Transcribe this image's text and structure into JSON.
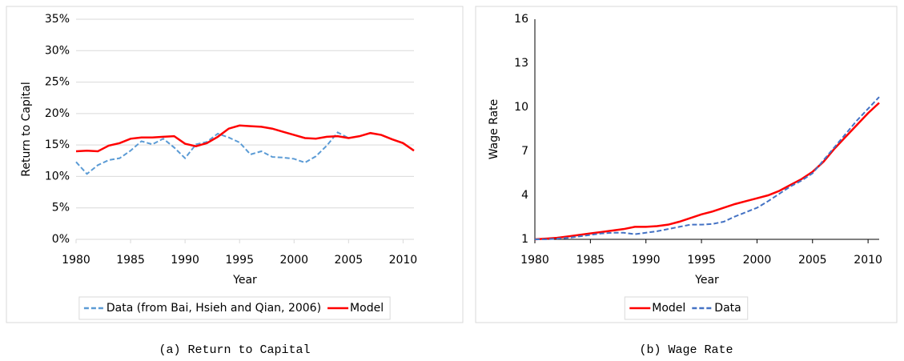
{
  "chart_data": [
    {
      "type": "line",
      "caption": "(a) Return to Capital",
      "x_label": "Year",
      "y_label": "Return to Capital",
      "x": [
        1980,
        1981,
        1982,
        1983,
        1984,
        1985,
        1986,
        1987,
        1988,
        1989,
        1990,
        1991,
        1992,
        1993,
        1994,
        1995,
        1996,
        1997,
        1998,
        1999,
        2000,
        2001,
        2002,
        2003,
        2004,
        2005,
        2006,
        2007,
        2008,
        2009,
        2010,
        2011
      ],
      "series": [
        {
          "name": "Data (from Bai, Hsieh and Qian, 2006)",
          "color": "#5b9bd5",
          "style": "dashed",
          "values": [
            12.3,
            10.4,
            11.8,
            12.6,
            12.9,
            14.1,
            15.6,
            15.1,
            16.0,
            14.6,
            12.9,
            15.1,
            15.5,
            16.8,
            16.2,
            15.4,
            13.5,
            14.0,
            13.1,
            13.0,
            12.8,
            12.2,
            13.2,
            14.9,
            17.0,
            16.1,
            null,
            null,
            null,
            null,
            null,
            null
          ]
        },
        {
          "name": "Model",
          "color": "#ff0000",
          "style": "solid",
          "values": [
            14.0,
            14.1,
            14.0,
            14.9,
            15.3,
            16.0,
            16.2,
            16.2,
            16.3,
            16.4,
            15.2,
            14.8,
            15.3,
            16.3,
            17.6,
            18.1,
            18.0,
            17.9,
            17.6,
            17.1,
            16.6,
            16.1,
            16.0,
            16.3,
            16.4,
            16.1,
            16.4,
            16.9,
            16.6,
            15.9,
            15.3,
            14.1
          ]
        }
      ],
      "xlim": [
        1980,
        2011
      ],
      "xticks": [
        1980,
        1985,
        1990,
        1995,
        2000,
        2005,
        2010
      ],
      "ylim": [
        0,
        35
      ],
      "yticks": [
        {
          "value": 0,
          "label": "0%"
        },
        {
          "value": 5,
          "label": "5%"
        },
        {
          "value": 10,
          "label": "10%"
        },
        {
          "value": 15,
          "label": "15%"
        },
        {
          "value": 20,
          "label": "20%"
        },
        {
          "value": 25,
          "label": "25%"
        },
        {
          "value": 30,
          "label": "30%"
        },
        {
          "value": 35,
          "label": "35%"
        }
      ],
      "grid": true
    },
    {
      "type": "line",
      "caption": "(b) Wage Rate",
      "x_label": "Year",
      "y_label": "Wage Rate",
      "x": [
        1980,
        1981,
        1982,
        1983,
        1984,
        1985,
        1986,
        1987,
        1988,
        1989,
        1990,
        1991,
        1992,
        1993,
        1994,
        1995,
        1996,
        1997,
        1998,
        1999,
        2000,
        2001,
        2002,
        2003,
        2004,
        2005,
        2006,
        2007,
        2008,
        2009,
        2010,
        2011
      ],
      "series": [
        {
          "name": "Model",
          "color": "#ff0000",
          "style": "solid",
          "values": [
            1.0,
            1.05,
            1.1,
            1.2,
            1.3,
            1.4,
            1.5,
            1.6,
            1.7,
            1.85,
            1.85,
            1.9,
            2.0,
            2.2,
            2.45,
            2.7,
            2.9,
            3.15,
            3.4,
            3.6,
            3.8,
            4.0,
            4.3,
            4.7,
            5.1,
            5.6,
            6.3,
            7.2,
            8.0,
            8.8,
            9.6,
            10.3
          ]
        },
        {
          "name": "Data",
          "color": "#4472c4",
          "style": "dashed",
          "values": [
            1.0,
            1.0,
            1.05,
            1.1,
            1.2,
            1.3,
            1.4,
            1.45,
            1.45,
            1.35,
            1.45,
            1.55,
            1.7,
            1.85,
            2.0,
            2.0,
            2.05,
            2.2,
            2.55,
            2.85,
            3.15,
            3.6,
            4.1,
            4.6,
            5.0,
            5.5,
            6.4,
            7.3,
            8.2,
            9.1,
            9.9,
            10.7
          ]
        }
      ],
      "xlim": [
        1980,
        2011
      ],
      "xticks": [
        1980,
        1985,
        1990,
        1995,
        2000,
        2005,
        2010
      ],
      "ylim": [
        1,
        16
      ],
      "yticks": [
        1,
        4,
        7,
        10,
        13,
        16
      ],
      "grid": false
    }
  ]
}
